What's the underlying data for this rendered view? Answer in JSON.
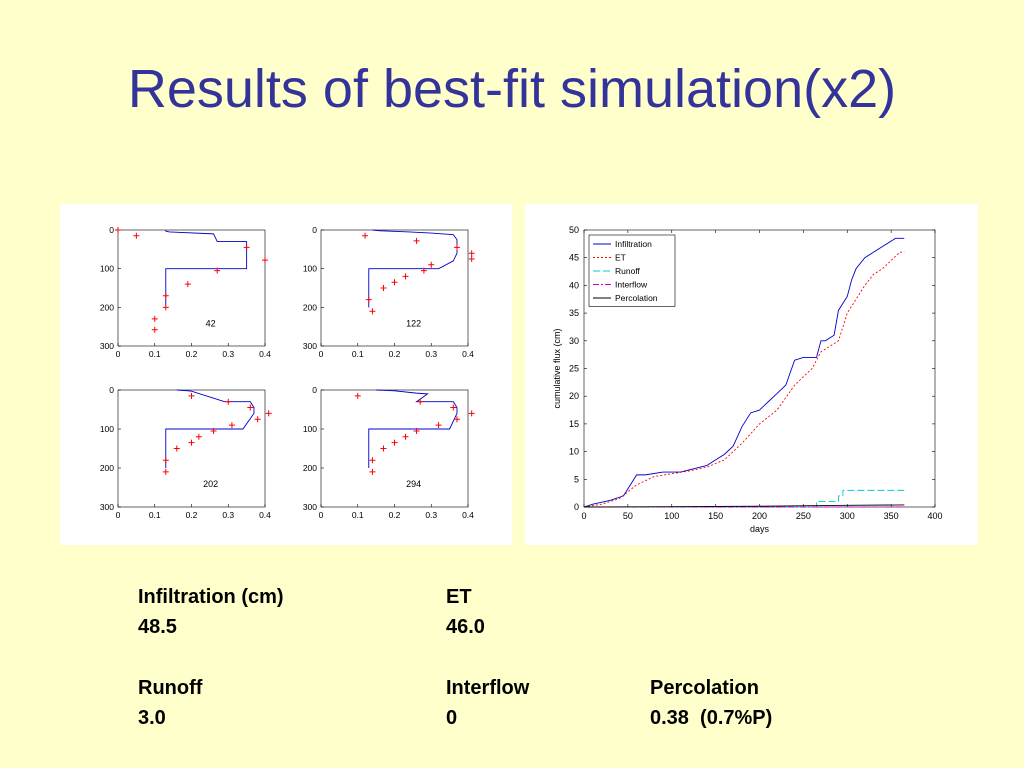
{
  "title": "Results of best-fit simulation(x2)",
  "stats": {
    "infiltration_label": "Infiltration (cm)",
    "infiltration_value": "48.5",
    "et_label": "ET",
    "et_value": "46.0",
    "runoff_label": "Runoff",
    "runoff_value": "3.0",
    "interflow_label": "Interflow",
    "interflow_value": "0",
    "percolation_label": "Percolation",
    "percolation_value": "0.38  (0.7%P)"
  },
  "colors": {
    "background": "#ffffcc",
    "title": "#333399",
    "sim_line": "#0000cc",
    "obs_marker": "#ff0000",
    "infiltration": "#0000cc",
    "et": "#ff0000",
    "runoff": "#00cccc",
    "interflow": "#cc00cc",
    "percolation": "#000000"
  },
  "chart_data": [
    {
      "type": "line",
      "subtype": "soil moisture profile",
      "label": "42",
      "xlim": [
        0,
        0.4
      ],
      "ylim": [
        0,
        300
      ],
      "y_reversed": true,
      "xticks": [
        "0",
        "0.1",
        "0.2",
        "0.3",
        "0.4"
      ],
      "yticks": [
        "0",
        "100",
        "200",
        "300"
      ],
      "simulated": {
        "theta": [
          0.13,
          0.13,
          0.14,
          0.26,
          0.27,
          0.35,
          0.35,
          0.35,
          0.35,
          0.13,
          0.13,
          0.13,
          0.13,
          0.13
        ],
        "depth": [
          0,
          3,
          5,
          10,
          30,
          30,
          60,
          70,
          100,
          100,
          150,
          175,
          185,
          195
        ]
      },
      "observed": {
        "theta": [
          0.0,
          0.05,
          0.35,
          0.4,
          0.27,
          0.19,
          0.13,
          0.13,
          0.1,
          0.1
        ],
        "depth": [
          0,
          15,
          45,
          78,
          105,
          140,
          170,
          200,
          230,
          258
        ]
      }
    },
    {
      "type": "line",
      "subtype": "soil moisture profile",
      "label": "122",
      "xlim": [
        0,
        0.4
      ],
      "ylim": [
        0,
        300
      ],
      "y_reversed": true,
      "xticks": [
        "0",
        "0.1",
        "0.2",
        "0.3",
        "0.4"
      ],
      "yticks": [
        "0",
        "100",
        "200",
        "300"
      ],
      "simulated": {
        "theta": [
          0.14,
          0.16,
          0.24,
          0.3,
          0.36,
          0.37,
          0.37,
          0.36,
          0.32,
          0.13,
          0.13,
          0.13,
          0.13
        ],
        "depth": [
          0,
          2,
          5,
          8,
          12,
          25,
          60,
          80,
          100,
          100,
          150,
          180,
          200
        ]
      },
      "observed": {
        "theta": [
          0.12,
          0.26,
          0.37,
          0.41,
          0.41,
          0.3,
          0.28,
          0.23,
          0.2,
          0.17,
          0.13,
          0.14
        ],
        "depth": [
          15,
          28,
          45,
          60,
          75,
          90,
          105,
          120,
          135,
          150,
          180,
          210
        ]
      }
    },
    {
      "type": "line",
      "subtype": "soil moisture profile",
      "label": "202",
      "xlim": [
        0,
        0.4
      ],
      "ylim": [
        0,
        300
      ],
      "y_reversed": true,
      "xticks": [
        "0",
        "0.1",
        "0.2",
        "0.3",
        "0.4"
      ],
      "yticks": [
        "0",
        "100",
        "200",
        "300"
      ],
      "simulated": {
        "theta": [
          0.16,
          0.19,
          0.2,
          0.29,
          0.3,
          0.36,
          0.37,
          0.37,
          0.34,
          0.13,
          0.13,
          0.13,
          0.13
        ],
        "depth": [
          0,
          2,
          3,
          30,
          30,
          30,
          45,
          60,
          100,
          100,
          150,
          180,
          200
        ]
      },
      "observed": {
        "theta": [
          0.2,
          0.3,
          0.36,
          0.41,
          0.38,
          0.31,
          0.26,
          0.22,
          0.2,
          0.16,
          0.13,
          0.13
        ],
        "depth": [
          15,
          30,
          45,
          60,
          75,
          90,
          105,
          120,
          135,
          150,
          180,
          210
        ]
      }
    },
    {
      "type": "line",
      "subtype": "soil moisture profile",
      "label": "294",
      "xlim": [
        0,
        0.4
      ],
      "ylim": [
        0,
        300
      ],
      "y_reversed": true,
      "xticks": [
        "0",
        "0.1",
        "0.2",
        "0.3",
        "0.4"
      ],
      "yticks": [
        "0",
        "100",
        "200",
        "300"
      ],
      "simulated": {
        "theta": [
          0.15,
          0.2,
          0.26,
          0.29,
          0.26,
          0.36,
          0.37,
          0.37,
          0.35,
          0.13,
          0.13,
          0.13,
          0.13
        ],
        "depth": [
          0,
          2,
          8,
          10,
          30,
          30,
          45,
          60,
          100,
          100,
          150,
          180,
          200
        ]
      },
      "observed": {
        "theta": [
          0.1,
          0.27,
          0.36,
          0.41,
          0.37,
          0.32,
          0.26,
          0.23,
          0.2,
          0.17,
          0.14,
          0.14
        ],
        "depth": [
          15,
          30,
          45,
          60,
          75,
          90,
          105,
          120,
          135,
          150,
          180,
          210
        ]
      }
    },
    {
      "type": "line",
      "xlabel": "days",
      "ylabel": "cumulative flux (cm)",
      "xlim": [
        0,
        400
      ],
      "ylim": [
        0,
        50
      ],
      "xticks": [
        0,
        50,
        100,
        150,
        200,
        250,
        300,
        350,
        400
      ],
      "yticks": [
        0,
        5,
        10,
        15,
        20,
        25,
        30,
        35,
        40,
        45,
        50
      ],
      "legend_position": "top-left",
      "series": [
        {
          "name": "Infiltration",
          "x": [
            0,
            10,
            30,
            45,
            60,
            70,
            90,
            110,
            140,
            150,
            160,
            170,
            180,
            190,
            200,
            210,
            220,
            230,
            240,
            250,
            265,
            270,
            275,
            280,
            285,
            290,
            300,
            305,
            310,
            320,
            330,
            340,
            350,
            355,
            360,
            365
          ],
          "y": [
            0,
            0.5,
            1.2,
            2,
            5.8,
            5.8,
            6.3,
            6.3,
            7.5,
            8.5,
            9.5,
            11,
            14.5,
            17,
            17.5,
            19,
            20.5,
            22,
            26.5,
            27,
            27,
            30,
            30,
            30.5,
            31,
            35.5,
            38,
            41,
            43,
            45,
            46,
            47,
            48,
            48.5,
            48.5,
            48.5
          ]
        },
        {
          "name": "ET",
          "x": [
            0,
            20,
            40,
            60,
            80,
            100,
            120,
            140,
            160,
            180,
            200,
            220,
            240,
            260,
            270,
            280,
            290,
            300,
            310,
            320,
            330,
            340,
            350,
            360,
            365
          ],
          "y": [
            0,
            0.5,
            1.5,
            4,
            5.5,
            6,
            6.5,
            7.2,
            8.5,
            11.5,
            15,
            17.5,
            22,
            25,
            28,
            29,
            30,
            35,
            37.5,
            40,
            42,
            43,
            44.5,
            46,
            46
          ]
        },
        {
          "name": "Runoff",
          "x": [
            0,
            265,
            265,
            290,
            290,
            295,
            295,
            365
          ],
          "y": [
            0,
            0,
            1,
            1,
            2,
            2,
            3,
            3
          ]
        },
        {
          "name": "Interflow",
          "x": [
            0,
            365
          ],
          "y": [
            0,
            0
          ]
        },
        {
          "name": "Percolation",
          "x": [
            0,
            100,
            200,
            300,
            365
          ],
          "y": [
            0,
            0.05,
            0.15,
            0.3,
            0.38
          ]
        }
      ]
    }
  ]
}
